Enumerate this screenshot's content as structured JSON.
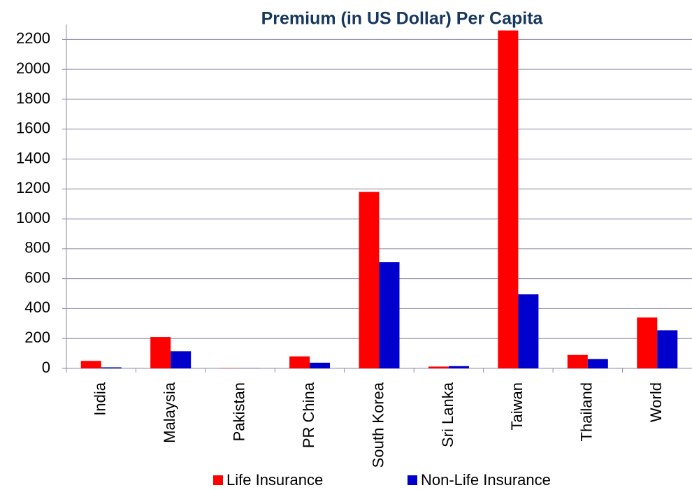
{
  "chart_data": {
    "type": "bar",
    "title": "Premium (in US Dollar) Per Capita",
    "categories": [
      "India",
      "Malaysia",
      "Pakistan",
      "PR China",
      "South Korea",
      "Sri Lanka",
      "Taiwan",
      "Thailand",
      "World"
    ],
    "series": [
      {
        "name": "Life Insurance",
        "color": "#ff0000",
        "values": [
          50,
          210,
          2,
          80,
          1180,
          12,
          2260,
          90,
          340
        ]
      },
      {
        "name": "Non-Life Insurance",
        "color": "#0000cc",
        "values": [
          7,
          115,
          1,
          38,
          710,
          15,
          495,
          62,
          255
        ]
      }
    ],
    "ylim": [
      0,
      2300
    ],
    "yticks": [
      0,
      200,
      400,
      600,
      800,
      1000,
      1200,
      1400,
      1600,
      1800,
      2000,
      2200
    ],
    "grid": true,
    "legend": "bottom"
  }
}
